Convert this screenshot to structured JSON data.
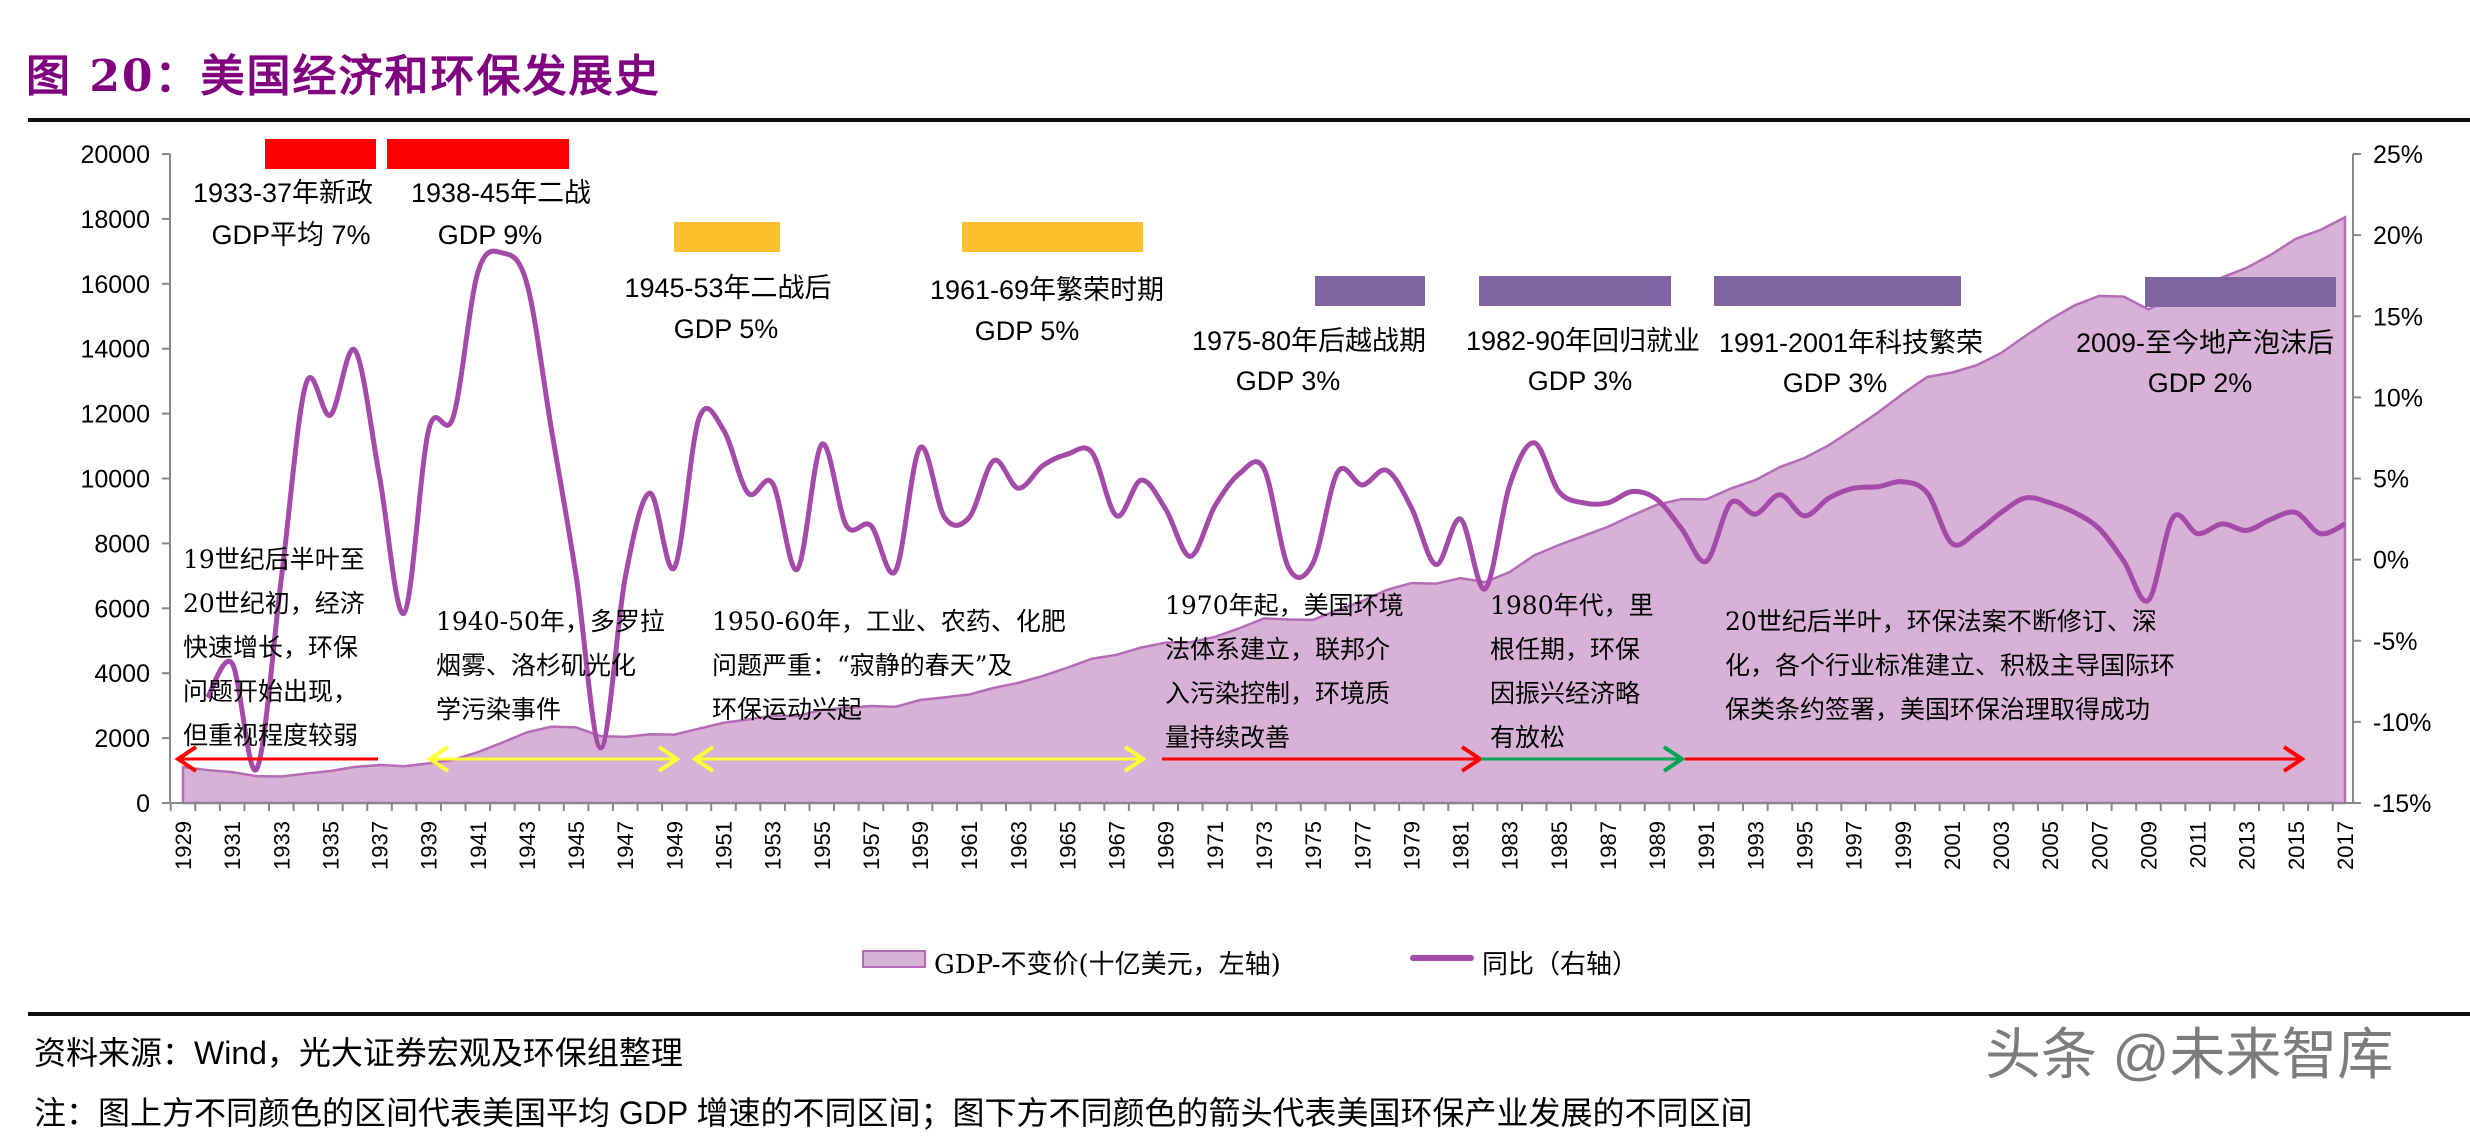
{
  "title": "图 20：美国经济和环保发展史",
  "chart_data": {
    "type": "area+line",
    "title": "",
    "categories": [
      1929,
      1930,
      1931,
      1932,
      1933,
      1934,
      1935,
      1936,
      1937,
      1938,
      1939,
      1940,
      1941,
      1942,
      1943,
      1944,
      1945,
      1946,
      1947,
      1948,
      1949,
      1950,
      1951,
      1952,
      1953,
      1954,
      1955,
      1956,
      1957,
      1958,
      1959,
      1960,
      1961,
      1962,
      1963,
      1964,
      1965,
      1966,
      1967,
      1968,
      1969,
      1970,
      1971,
      1972,
      1973,
      1974,
      1975,
      1976,
      1977,
      1978,
      1979,
      1980,
      1981,
      1982,
      1983,
      1984,
      1985,
      1986,
      1987,
      1988,
      1989,
      1990,
      1991,
      1992,
      1993,
      1994,
      1995,
      1996,
      1997,
      1998,
      1999,
      2000,
      2001,
      2002,
      2003,
      2004,
      2005,
      2006,
      2007,
      2008,
      2009,
      2010,
      2011,
      2012,
      2013,
      2014,
      2015,
      2016,
      2017
    ],
    "x_tick_labels": [
      "1929",
      "1931",
      "1933",
      "1935",
      "1937",
      "1939",
      "1941",
      "1943",
      "1945",
      "1947",
      "1949",
      "1951",
      "1953",
      "1955",
      "1957",
      "1959",
      "1961",
      "1963",
      "1965",
      "1967",
      "1969",
      "1971",
      "1973",
      "1975",
      "1977",
      "1979",
      "1981",
      "1983",
      "1985",
      "1987",
      "1989",
      "1991",
      "1993",
      "1995",
      "1997",
      "1999",
      "2001",
      "2003",
      "2005",
      "2007",
      "2009",
      "2011",
      "2013",
      "2015",
      "2017"
    ],
    "y_left": {
      "range": [
        0,
        20000
      ],
      "ticks": [
        "0",
        "2000",
        "4000",
        "6000",
        "8000",
        "10000",
        "12000",
        "14000",
        "16000",
        "18000",
        "20000"
      ]
    },
    "y_right": {
      "range": [
        -15,
        25
      ],
      "ticks": [
        "-15%",
        "-10%",
        "-5%",
        "0%",
        "5%",
        "10%",
        "15%",
        "20%",
        "25%"
      ]
    },
    "grid": false,
    "legend_position": "bottom",
    "series": [
      {
        "name": "GDP-不变价(十亿美元，左轴)",
        "type": "area",
        "axis": "left",
        "color": "#D8B1D6",
        "stroke": "#B36CB5",
        "values": [
          1109,
          1015,
          950,
          828,
          817,
          906,
          986,
          1114,
          1172,
          1131,
          1222,
          1330,
          1565,
          1862,
          2180,
          2353,
          2330,
          2060,
          2038,
          2119,
          2109,
          2290,
          2473,
          2574,
          2695,
          2680,
          2871,
          2929,
          2988,
          2965,
          3174,
          3255,
          3343,
          3548,
          3702,
          3916,
          4170,
          4445,
          4567,
          4792,
          4942,
          4952,
          5117,
          5386,
          5691,
          5656,
          5645,
          5949,
          6224,
          6568,
          6777,
          6759,
          6931,
          6806,
          7118,
          7631,
          7950,
          8229,
          8511,
          8866,
          9192,
          9366,
          9356,
          9690,
          9952,
          10352,
          10631,
          11031,
          11522,
          12038,
          12611,
          13131,
          13263,
          13488,
          13866,
          14399,
          14902,
          15338,
          15626,
          15605,
          15209,
          15599,
          15841,
          16197,
          16495,
          16900,
          17387,
          17659,
          18051
        ]
      },
      {
        "name": "同比（右轴）",
        "type": "line",
        "axis": "right",
        "color": "#A44AA8",
        "values": [
          null,
          -8.5,
          -6.4,
          -12.9,
          -1.2,
          10.8,
          8.9,
          12.9,
          5.1,
          -3.3,
          8.0,
          8.8,
          17.7,
          18.9,
          17.0,
          8.0,
          -1.0,
          -11.6,
          -1.1,
          4.1,
          -0.5,
          8.7,
          8.0,
          4.1,
          4.7,
          -0.6,
          7.1,
          2.1,
          2.1,
          -0.7,
          6.9,
          2.6,
          2.6,
          6.1,
          4.4,
          5.8,
          6.5,
          6.6,
          2.7,
          4.9,
          3.1,
          0.2,
          3.3,
          5.3,
          5.6,
          -0.5,
          -0.2,
          5.4,
          4.6,
          5.5,
          3.2,
          -0.3,
          2.5,
          -1.8,
          4.6,
          7.2,
          4.2,
          3.5,
          3.5,
          4.2,
          3.7,
          1.9,
          -0.1,
          3.5,
          2.8,
          4.0,
          2.7,
          3.8,
          4.4,
          4.5,
          4.8,
          4.1,
          1.0,
          1.7,
          2.9,
          3.8,
          3.5,
          2.9,
          1.9,
          -0.1,
          -2.5,
          2.6,
          1.6,
          2.2,
          1.8,
          2.5,
          2.9,
          1.6,
          2.2
        ]
      }
    ],
    "periods": [
      {
        "from": 1933,
        "to": 1937,
        "color": "#FF0000",
        "label": "1933-37年新政",
        "gdp": "GDP平均 7%"
      },
      {
        "from": 1938,
        "to": 1945,
        "color": "#FF0000",
        "label": "1938-45年二战",
        "gdp": "GDP 9%"
      },
      {
        "from": 1945,
        "to": 1953,
        "color": "#FDBF2D",
        "label": "1945-53年二战后",
        "gdp": "GDP 5%"
      },
      {
        "from": 1961,
        "to": 1969,
        "color": "#FDBF2D",
        "label": "1961-69年繁荣时期",
        "gdp": "GDP 5%"
      },
      {
        "from": 1975,
        "to": 1980,
        "color": "#8064A2",
        "label": "1975-80年后越战期",
        "gdp": "GDP 3%"
      },
      {
        "from": 1982,
        "to": 1990,
        "color": "#8064A2",
        "label": "1982-90年回归就业",
        "gdp": "GDP 3%"
      },
      {
        "from": 1991,
        "to": 2001,
        "color": "#8064A2",
        "label": "1991-2001年科技繁荣",
        "gdp": "GDP 3%"
      },
      {
        "from": 2009,
        "to": 2017,
        "color": "#8064A2",
        "label": "2009-至今地产泡沫后",
        "gdp": "GDP 2%"
      }
    ],
    "eras": [
      {
        "color": "#FF0000",
        "arrow": "left",
        "lines": [
          "19世纪后半叶至",
          "20世纪初，经济",
          "快速增长，环保",
          "问题开始出现，",
          "但重视程度较弱"
        ]
      },
      {
        "color": "#FFFF33",
        "arrow": "both",
        "lines": [
          "1940-50年，多罗拉",
          "烟雾、洛杉矶光化",
          "学污染事件"
        ]
      },
      {
        "color": "#FFFF33",
        "arrow": "both",
        "lines": [
          "1950-60年，工业、农药、化肥",
          "问题严重：“寂静的春天”及",
          "环保运动兴起"
        ]
      },
      {
        "color": "#FF0000",
        "arrow": "right",
        "lines": [
          "1970年起，美国环境",
          "法体系建立，联邦介",
          "入污染控制，环境质",
          "量持续改善"
        ]
      },
      {
        "color": "#00A651",
        "arrow": "right",
        "lines": [
          "1980年代，里",
          "根任期，环保",
          "因振兴经济略",
          "有放松"
        ]
      },
      {
        "color": "#FF0000",
        "arrow": "right",
        "lines": [
          "20世纪后半叶，环保法案不断修订、深",
          "化，各个行业标准建立、积极主导国际环",
          "保类条约签署，美国环保治理取得成功"
        ]
      }
    ]
  },
  "footer": {
    "source": "资料来源：Wind，光大证券宏观及环保组整理",
    "note": "注：图上方不同颜色的区间代表美国平均 GDP 增速的不同区间；图下方不同颜色的箭头代表美国环保产业发展的不同区间",
    "watermark": "头条 @未来智库"
  }
}
